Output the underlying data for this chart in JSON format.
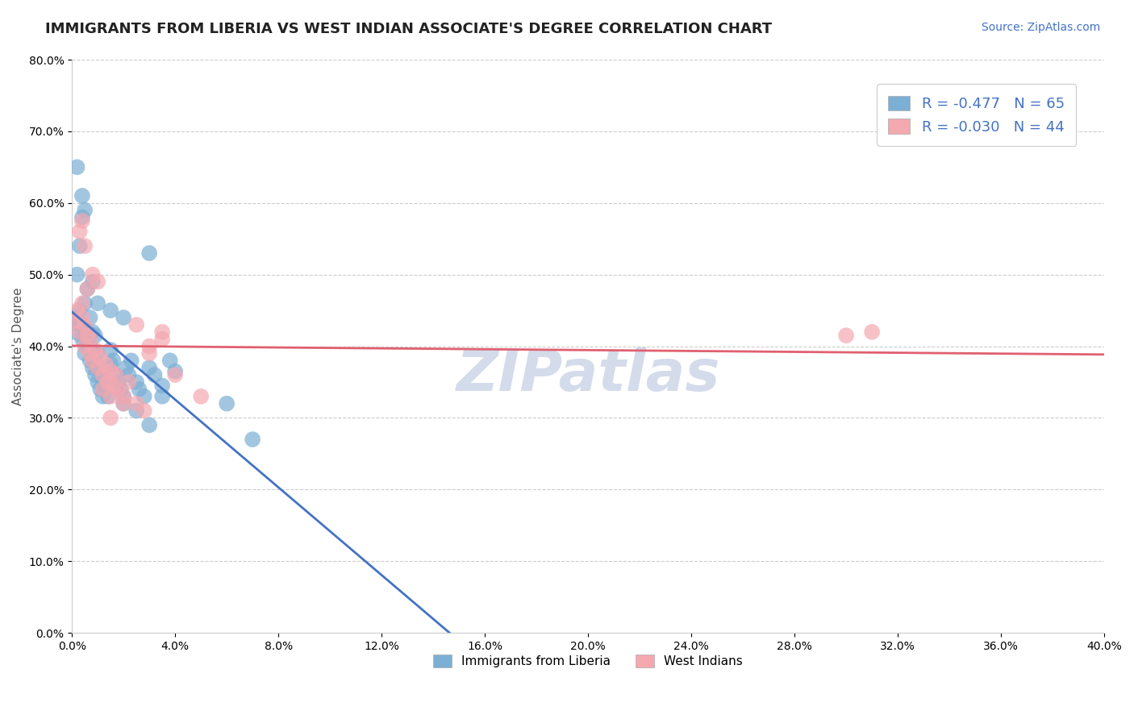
{
  "title": "IMMIGRANTS FROM LIBERIA VS WEST INDIAN ASSOCIATE'S DEGREE CORRELATION CHART",
  "source_text": "Source: ZipAtlas.com",
  "ylabel": "Associate's Degree",
  "xlabel": "",
  "xlim": [
    0.0,
    0.4
  ],
  "ylim": [
    0.0,
    0.8
  ],
  "legend1_label": "R = -0.477   N = 65",
  "legend2_label": "R = -0.030   N = 44",
  "series1_color": "#7BAFD4",
  "series2_color": "#F4A8B0",
  "trendline1_color": "#4472C4",
  "trendline2_color": "#E06070",
  "dashed_extension_color": "#AAAAAA",
  "background_color": "#FFFFFF",
  "grid_color": "#CCCCCC",
  "watermark_text": "ZIPatlas",
  "watermark_color": "#D0D8E8",
  "series1_name": "Immigrants from Liberia",
  "series2_name": "West Indians",
  "series1_R": -0.477,
  "series1_N": 65,
  "series2_R": -0.03,
  "series2_N": 44,
  "series1_points": [
    [
      0.001,
      0.42
    ],
    [
      0.002,
      0.44
    ],
    [
      0.003,
      0.43
    ],
    [
      0.003,
      0.45
    ],
    [
      0.004,
      0.41
    ],
    [
      0.004,
      0.43
    ],
    [
      0.005,
      0.39
    ],
    [
      0.005,
      0.41
    ],
    [
      0.005,
      0.46
    ],
    [
      0.006,
      0.4
    ],
    [
      0.006,
      0.42
    ],
    [
      0.007,
      0.38
    ],
    [
      0.007,
      0.4
    ],
    [
      0.007,
      0.44
    ],
    [
      0.008,
      0.37
    ],
    [
      0.008,
      0.395
    ],
    [
      0.008,
      0.42
    ],
    [
      0.009,
      0.36
    ],
    [
      0.009,
      0.38
    ],
    [
      0.009,
      0.415
    ],
    [
      0.01,
      0.35
    ],
    [
      0.01,
      0.37
    ],
    [
      0.01,
      0.39
    ],
    [
      0.011,
      0.34
    ],
    [
      0.011,
      0.365
    ],
    [
      0.012,
      0.33
    ],
    [
      0.012,
      0.355
    ],
    [
      0.013,
      0.345
    ],
    [
      0.014,
      0.33
    ],
    [
      0.015,
      0.375
    ],
    [
      0.015,
      0.395
    ],
    [
      0.016,
      0.38
    ],
    [
      0.017,
      0.36
    ],
    [
      0.018,
      0.35
    ],
    [
      0.019,
      0.34
    ],
    [
      0.02,
      0.33
    ],
    [
      0.021,
      0.37
    ],
    [
      0.022,
      0.36
    ],
    [
      0.023,
      0.38
    ],
    [
      0.025,
      0.35
    ],
    [
      0.026,
      0.34
    ],
    [
      0.028,
      0.33
    ],
    [
      0.03,
      0.37
    ],
    [
      0.032,
      0.36
    ],
    [
      0.035,
      0.345
    ],
    [
      0.038,
      0.38
    ],
    [
      0.04,
      0.365
    ],
    [
      0.002,
      0.5
    ],
    [
      0.003,
      0.54
    ],
    [
      0.004,
      0.58
    ],
    [
      0.004,
      0.61
    ],
    [
      0.005,
      0.59
    ],
    [
      0.002,
      0.65
    ],
    [
      0.006,
      0.48
    ],
    [
      0.008,
      0.49
    ],
    [
      0.01,
      0.46
    ],
    [
      0.015,
      0.45
    ],
    [
      0.02,
      0.44
    ],
    [
      0.02,
      0.32
    ],
    [
      0.025,
      0.31
    ],
    [
      0.03,
      0.29
    ],
    [
      0.03,
      0.53
    ],
    [
      0.035,
      0.33
    ],
    [
      0.06,
      0.32
    ],
    [
      0.07,
      0.27
    ]
  ],
  "series2_points": [
    [
      0.001,
      0.435
    ],
    [
      0.002,
      0.45
    ],
    [
      0.003,
      0.42
    ],
    [
      0.004,
      0.44
    ],
    [
      0.004,
      0.46
    ],
    [
      0.005,
      0.4
    ],
    [
      0.005,
      0.43
    ],
    [
      0.006,
      0.415
    ],
    [
      0.007,
      0.39
    ],
    [
      0.007,
      0.41
    ],
    [
      0.008,
      0.38
    ],
    [
      0.009,
      0.395
    ],
    [
      0.01,
      0.37
    ],
    [
      0.011,
      0.385
    ],
    [
      0.012,
      0.36
    ],
    [
      0.013,
      0.375
    ],
    [
      0.014,
      0.35
    ],
    [
      0.015,
      0.365
    ],
    [
      0.016,
      0.345
    ],
    [
      0.017,
      0.36
    ],
    [
      0.018,
      0.34
    ],
    [
      0.02,
      0.33
    ],
    [
      0.022,
      0.35
    ],
    [
      0.025,
      0.32
    ],
    [
      0.028,
      0.31
    ],
    [
      0.03,
      0.39
    ],
    [
      0.035,
      0.42
    ],
    [
      0.04,
      0.36
    ],
    [
      0.05,
      0.33
    ],
    [
      0.003,
      0.56
    ],
    [
      0.004,
      0.575
    ],
    [
      0.005,
      0.54
    ],
    [
      0.006,
      0.48
    ],
    [
      0.008,
      0.5
    ],
    [
      0.01,
      0.49
    ],
    [
      0.012,
      0.34
    ],
    [
      0.015,
      0.33
    ],
    [
      0.02,
      0.32
    ],
    [
      0.025,
      0.43
    ],
    [
      0.03,
      0.4
    ],
    [
      0.035,
      0.41
    ],
    [
      0.3,
      0.415
    ],
    [
      0.31,
      0.42
    ],
    [
      0.015,
      0.3
    ]
  ]
}
